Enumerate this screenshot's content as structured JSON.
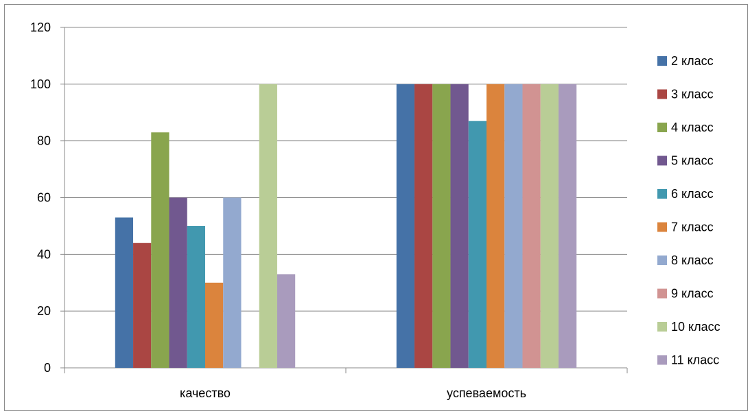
{
  "chart_data": {
    "type": "bar",
    "title": "",
    "xlabel": "",
    "ylabel": "",
    "categories": [
      "качество",
      "успеваемость"
    ],
    "ylim": [
      0,
      120
    ],
    "yticks": [
      0,
      20,
      40,
      60,
      80,
      100,
      120
    ],
    "grid": true,
    "legend_position": "right",
    "series": [
      {
        "name": "2 класс",
        "color": "#4572A7",
        "values": [
          53,
          100
        ]
      },
      {
        "name": "3 класс",
        "color": "#AA4643",
        "values": [
          44,
          100
        ]
      },
      {
        "name": "4 класс",
        "color": "#89A54E",
        "values": [
          83,
          100
        ]
      },
      {
        "name": "5 класс",
        "color": "#71588F",
        "values": [
          60,
          100
        ]
      },
      {
        "name": "6 класс",
        "color": "#4198AF",
        "values": [
          50,
          87
        ]
      },
      {
        "name": "7 класс",
        "color": "#DB843D",
        "values": [
          30,
          100
        ]
      },
      {
        "name": "8 класс",
        "color": "#93A9CF",
        "values": [
          60,
          100
        ]
      },
      {
        "name": "9 класс",
        "color": "#D19392",
        "values": [
          0,
          100
        ]
      },
      {
        "name": "10 класс",
        "color": "#B9CD96",
        "values": [
          100,
          100
        ]
      },
      {
        "name": "11 класс",
        "color": "#A99BBD",
        "values": [
          33,
          100
        ]
      }
    ]
  }
}
